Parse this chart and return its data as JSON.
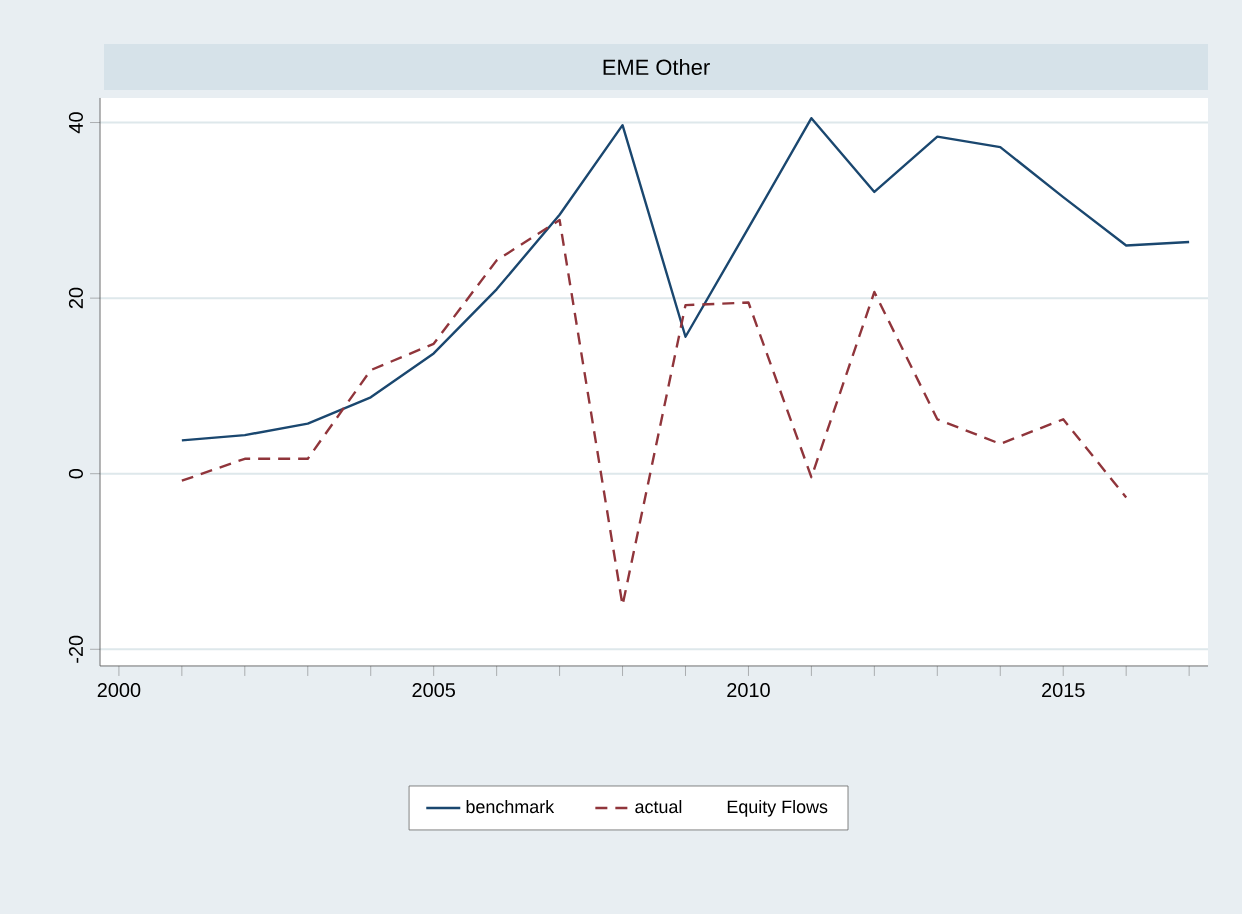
{
  "chart_data": {
    "type": "line",
    "title": "EME Other",
    "legend_title": "Equity Flows",
    "x": [
      2001,
      2002,
      2003,
      2004,
      2005,
      2006,
      2007,
      2008,
      2009,
      2010,
      2011,
      2012,
      2013,
      2014,
      2015,
      2016,
      2017
    ],
    "series": [
      {
        "name": "benchmark",
        "color": "#1a476f",
        "line_style": "solid",
        "values": [
          3.8,
          4.4,
          5.7,
          8.7,
          13.7,
          21,
          29.5,
          39.7,
          15.6,
          28,
          40.5,
          32.1,
          38.4,
          37.2,
          31.5,
          26,
          26.4
        ]
      },
      {
        "name": "actual",
        "color": "#90353b",
        "line_style": "dashed",
        "values": [
          -0.8,
          1.7,
          1.7,
          11.8,
          14.8,
          24.3,
          28.9,
          -15,
          19.2,
          19.5,
          -0.4,
          20.7,
          6.2,
          3.4,
          6.2,
          -2.7,
          null
        ]
      }
    ],
    "xlim": [
      1999.7,
      2017.3
    ],
    "ylim": [
      -21.9,
      42.8
    ],
    "xticks": [
      2000,
      {
        "value": 2001,
        "label": null
      },
      {
        "value": 2002,
        "label": null
      },
      {
        "value": 2003,
        "label": null
      },
      {
        "value": 2004,
        "label": null
      },
      2005,
      {
        "value": 2006,
        "label": null
      },
      {
        "value": 2007,
        "label": null
      },
      {
        "value": 2008,
        "label": null
      },
      {
        "value": 2009,
        "label": null
      },
      2010,
      {
        "value": 2011,
        "label": null
      },
      {
        "value": 2012,
        "label": null
      },
      {
        "value": 2013,
        "label": null
      },
      {
        "value": 2014,
        "label": null
      },
      2015,
      {
        "value": 2016,
        "label": null
      },
      {
        "value": 2017,
        "label": null
      }
    ],
    "yticks": [
      -20,
      0,
      20,
      40
    ],
    "grid": "y",
    "legend": "bottom",
    "marker": "none"
  }
}
